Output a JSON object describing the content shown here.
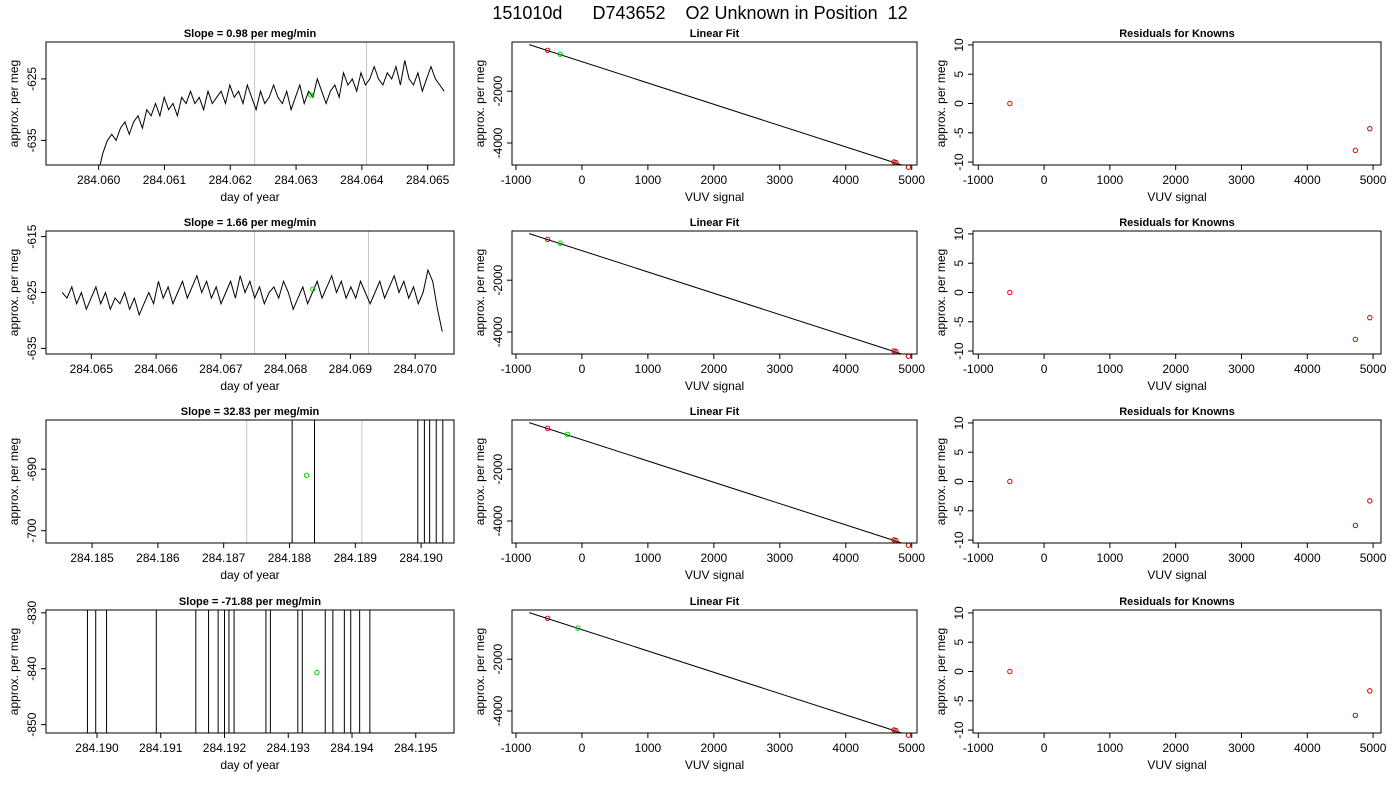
{
  "page_title": "151010d      D743652    O2 Unknown in Position  12",
  "chart_data": [
    {
      "type": "line",
      "title": "Slope =  0.98  per meg/min",
      "xlabel": "day of year",
      "ylabel": "approx. per meg",
      "xlim": [
        284.0592,
        284.0654
      ],
      "ylim": [
        -639,
        -619
      ],
      "xticks": [
        284.06,
        284.061,
        284.062,
        284.063,
        284.064,
        284.065
      ],
      "xticklabels": [
        "284.060",
        "284.061",
        "284.062",
        "284.063",
        "284.064",
        "284.065"
      ],
      "yticks": [
        -635,
        -625
      ],
      "yticklabels": [
        "-635",
        "-625"
      ],
      "vlines": [
        284.06237,
        284.06407
      ],
      "series": [
        {
          "x_start": 284.06,
          "x_end": 284.06525,
          "values": [
            -640,
            -637,
            -635,
            -634,
            -635,
            -633,
            -632,
            -634,
            -632,
            -631,
            -633,
            -630,
            -631,
            -629,
            -631,
            -628,
            -630,
            -629,
            -631,
            -628,
            -629,
            -627,
            -629,
            -628,
            -630,
            -627,
            -629,
            -628,
            -627,
            -629,
            -626,
            -628,
            -627,
            -629,
            -626,
            -628,
            -630,
            -627,
            -629,
            -628,
            -626,
            -628,
            -629,
            -627,
            -630,
            -628,
            -626,
            -629,
            -627,
            -628,
            -625,
            -627,
            -629,
            -627,
            -626,
            -628,
            -624,
            -626,
            -625,
            -627,
            -624,
            -626,
            -625,
            -623,
            -625,
            -626,
            -624,
            -625,
            -623,
            -626,
            -622,
            -625,
            -626,
            -624,
            -627,
            -625,
            -623,
            -625,
            -626,
            -627
          ]
        }
      ],
      "points": [
        {
          "x": 284.06322,
          "y": -627.6
        }
      ]
    },
    {
      "type": "line",
      "title": "Slope =  1.66  per meg/min",
      "xlabel": "day of year",
      "ylabel": "approx. per meg",
      "xlim": [
        284.0643,
        284.0706
      ],
      "ylim": [
        -636,
        -614
      ],
      "xticks": [
        284.065,
        284.066,
        284.067,
        284.068,
        284.069,
        284.07
      ],
      "xticklabels": [
        "284.065",
        "284.066",
        "284.067",
        "284.068",
        "284.069",
        "284.070"
      ],
      "yticks": [
        -635,
        -625,
        -615
      ],
      "yticklabels": [
        "-635",
        "-625",
        "-615"
      ],
      "vlines": [
        284.06752,
        284.06928
      ],
      "series": [
        {
          "x_start": 284.06455,
          "x_end": 284.07042,
          "values": [
            -625,
            -626,
            -624,
            -627,
            -625,
            -628,
            -626,
            -624,
            -627,
            -625,
            -628,
            -626,
            -627,
            -625,
            -628,
            -626,
            -629,
            -627,
            -625,
            -627,
            -623,
            -626,
            -624,
            -627,
            -625,
            -623,
            -626,
            -624,
            -622,
            -625,
            -623,
            -626,
            -624,
            -627,
            -625,
            -623,
            -626,
            -622,
            -625,
            -623,
            -626,
            -624,
            -627,
            -625,
            -624,
            -626,
            -623,
            -625,
            -628,
            -626,
            -624,
            -627,
            -625,
            -623,
            -626,
            -624,
            -622,
            -625,
            -623,
            -626,
            -624,
            -626,
            -623,
            -625,
            -627,
            -625,
            -623,
            -626,
            -624,
            -622,
            -625,
            -623,
            -626,
            -624,
            -627,
            -625,
            -621,
            -623,
            -628,
            -632
          ]
        }
      ],
      "points": [
        {
          "x": 284.06842,
          "y": -624.4
        }
      ]
    },
    {
      "type": "line",
      "title": "Slope =  32.83  per meg/min",
      "xlabel": "day of year",
      "ylabel": "approx. per meg",
      "xlim": [
        284.1843,
        284.1905
      ],
      "ylim": [
        -702,
        -682
      ],
      "xticks": [
        284.185,
        284.186,
        284.187,
        284.188,
        284.189,
        284.19
      ],
      "xticklabels": [
        "284.185",
        "284.186",
        "284.187",
        "284.188",
        "284.189",
        "284.190"
      ],
      "yticks": [
        -700,
        -690
      ],
      "yticklabels": [
        "-700",
        "-690"
      ],
      "vlines": [
        284.18735,
        284.1891
      ],
      "spikes": [
        284.18804,
        284.18838,
        284.18995,
        284.19005,
        284.19013,
        284.19023,
        284.19033
      ],
      "points": [
        {
          "x": 284.18826,
          "y": -691
        }
      ]
    },
    {
      "type": "line",
      "title": "Slope =  -71.88  per meg/min",
      "xlabel": "day of year",
      "ylabel": "approx. per meg",
      "xlim": [
        284.1892,
        284.1956
      ],
      "ylim": [
        -851.5,
        -829.5
      ],
      "xticks": [
        284.19,
        284.191,
        284.192,
        284.193,
        284.194,
        284.195
      ],
      "xticklabels": [
        "284.190",
        "284.191",
        "284.192",
        "284.193",
        "284.194",
        "284.195"
      ],
      "yticks": [
        -850,
        -840,
        -830
      ],
      "yticklabels": [
        "-850",
        "-840",
        "-830"
      ],
      "vlines": [],
      "spikes": [
        284.18985,
        284.18998,
        284.19015,
        284.19093,
        284.19155,
        284.19175,
        284.1919,
        284.192,
        284.19207,
        284.19215,
        284.19265,
        284.19272,
        284.19315,
        284.19322,
        284.19358,
        284.1937,
        284.19388,
        284.19398,
        284.19412,
        284.19428
      ],
      "points": [
        {
          "x": 284.19345,
          "y": -840.7
        }
      ]
    },
    {
      "type": "scatter",
      "title": "Linear Fit",
      "xlabel": "VUV signal",
      "ylabel": "approx. per meg",
      "xlim": [
        -1060,
        5080
      ],
      "ylim": [
        -4850,
        -100
      ],
      "xticks": [
        -1000,
        0,
        1000,
        2000,
        3000,
        4000,
        5000
      ],
      "xticklabels": [
        "-1000",
        "0",
        "1000",
        "2000",
        "3000",
        "4000",
        "5000"
      ],
      "yticks": [
        -4000,
        -2000
      ],
      "yticklabels": [
        "-4000",
        "-2000"
      ],
      "line": [
        [
          -800,
          -200
        ],
        [
          4970,
          -4950
        ]
      ],
      "known": [
        [
          -520,
          -420
        ],
        [
          4730,
          -4730
        ],
        [
          4760,
          -4755
        ],
        [
          4950,
          -4935
        ]
      ],
      "unknown": [
        [
          -330,
          -570
        ]
      ]
    },
    {
      "type": "scatter",
      "title": "Linear Fit",
      "xlabel": "VUV signal",
      "ylabel": "approx. per meg",
      "xlim": [
        -1060,
        5080
      ],
      "ylim": [
        -4850,
        -100
      ],
      "xticks": [
        -1000,
        0,
        1000,
        2000,
        3000,
        4000,
        5000
      ],
      "xticklabels": [
        "-1000",
        "0",
        "1000",
        "2000",
        "3000",
        "4000",
        "5000"
      ],
      "yticks": [
        -4000,
        -2000
      ],
      "yticklabels": [
        "-4000",
        "-2000"
      ],
      "line": [
        [
          -800,
          -200
        ],
        [
          4970,
          -4950
        ]
      ],
      "known": [
        [
          -520,
          -420
        ],
        [
          4730,
          -4730
        ],
        [
          4760,
          -4755
        ],
        [
          4950,
          -4935
        ]
      ],
      "unknown": [
        [
          -330,
          -570
        ]
      ]
    },
    {
      "type": "scatter",
      "title": "Linear Fit",
      "xlabel": "VUV signal",
      "ylabel": "approx. per meg",
      "xlim": [
        -1060,
        5080
      ],
      "ylim": [
        -4850,
        -100
      ],
      "xticks": [
        -1000,
        0,
        1000,
        2000,
        3000,
        4000,
        5000
      ],
      "xticklabels": [
        "-1000",
        "0",
        "1000",
        "2000",
        "3000",
        "4000",
        "5000"
      ],
      "yticks": [
        -4000,
        -2000
      ],
      "yticklabels": [
        "-4000",
        "-2000"
      ],
      "line": [
        [
          -800,
          -200
        ],
        [
          4970,
          -4950
        ]
      ],
      "known": [
        [
          -520,
          -420
        ],
        [
          4730,
          -4730
        ],
        [
          4760,
          -4755
        ],
        [
          4950,
          -4935
        ]
      ],
      "unknown": [
        [
          -220,
          -660
        ]
      ]
    },
    {
      "type": "scatter",
      "title": "Linear Fit",
      "xlabel": "VUV signal",
      "ylabel": "approx. per meg",
      "xlim": [
        -1060,
        5080
      ],
      "ylim": [
        -4850,
        -100
      ],
      "xticks": [
        -1000,
        0,
        1000,
        2000,
        3000,
        4000,
        5000
      ],
      "xticklabels": [
        "-1000",
        "0",
        "1000",
        "2000",
        "3000",
        "4000",
        "5000"
      ],
      "yticks": [
        -4000,
        -2000
      ],
      "yticklabels": [
        "-4000",
        "-2000"
      ],
      "line": [
        [
          -800,
          -200
        ],
        [
          4970,
          -4950
        ]
      ],
      "known": [
        [
          -520,
          -420
        ],
        [
          4730,
          -4730
        ],
        [
          4760,
          -4755
        ],
        [
          4950,
          -4935
        ]
      ],
      "unknown": [
        [
          -60,
          -800
        ]
      ]
    },
    {
      "type": "scatter",
      "title": "Residuals for Knowns",
      "xlabel": "VUV signal",
      "ylabel": "approx. per meg",
      "xlim": [
        -1080,
        5120
      ],
      "ylim": [
        -10.5,
        10.5
      ],
      "xticks": [
        -1000,
        0,
        1000,
        2000,
        3000,
        4000,
        5000
      ],
      "xticklabels": [
        "-1000",
        "0",
        "1000",
        "2000",
        "3000",
        "4000",
        "5000"
      ],
      "yticks": [
        -10,
        -5,
        0,
        5,
        10
      ],
      "yticklabels": [
        "-10",
        "-5",
        "0",
        "5",
        "10"
      ],
      "known": [
        [
          -520,
          0
        ],
        [
          4730,
          -8
        ],
        [
          4950,
          -4.3
        ]
      ]
    },
    {
      "type": "scatter",
      "title": "Residuals for Knowns",
      "xlabel": "VUV signal",
      "ylabel": "approx. per meg",
      "xlim": [
        -1080,
        5120
      ],
      "ylim": [
        -10.5,
        10.5
      ],
      "xticks": [
        -1000,
        0,
        1000,
        2000,
        3000,
        4000,
        5000
      ],
      "xticklabels": [
        "-1000",
        "0",
        "1000",
        "2000",
        "3000",
        "4000",
        "5000"
      ],
      "yticks": [
        -10,
        -5,
        0,
        5,
        10
      ],
      "yticklabels": [
        "-10",
        "-5",
        "0",
        "5",
        "10"
      ],
      "known": [
        [
          -520,
          0
        ],
        [
          4730,
          -8
        ],
        [
          4950,
          -4.3
        ]
      ]
    },
    {
      "type": "scatter",
      "title": "Residuals for Knowns",
      "xlabel": "VUV signal",
      "ylabel": "approx. per meg",
      "xlim": [
        -1080,
        5120
      ],
      "ylim": [
        -10.5,
        10.5
      ],
      "xticks": [
        -1000,
        0,
        1000,
        2000,
        3000,
        4000,
        5000
      ],
      "xticklabels": [
        "-1000",
        "0",
        "1000",
        "2000",
        "3000",
        "4000",
        "5000"
      ],
      "yticks": [
        -10,
        -5,
        0,
        5,
        10
      ],
      "yticklabels": [
        "-10",
        "-5",
        "0",
        "5",
        "10"
      ],
      "known": [
        [
          -520,
          0
        ],
        [
          4730,
          -7.5
        ],
        [
          4950,
          -3.3
        ]
      ]
    },
    {
      "type": "scatter",
      "title": "Residuals for Knowns",
      "xlabel": "VUV signal",
      "ylabel": "approx. per meg",
      "xlim": [
        -1080,
        5120
      ],
      "ylim": [
        -10.5,
        10.5
      ],
      "xticks": [
        -1000,
        0,
        1000,
        2000,
        3000,
        4000,
        5000
      ],
      "xticklabels": [
        "-1000",
        "0",
        "1000",
        "2000",
        "3000",
        "4000",
        "5000"
      ],
      "yticks": [
        -10,
        -5,
        0,
        5,
        10
      ],
      "yticklabels": [
        "-10",
        "-5",
        "0",
        "5",
        "10"
      ],
      "known": [
        [
          -520,
          0
        ],
        [
          4730,
          -7.5
        ],
        [
          4950,
          -3.3
        ]
      ]
    }
  ]
}
